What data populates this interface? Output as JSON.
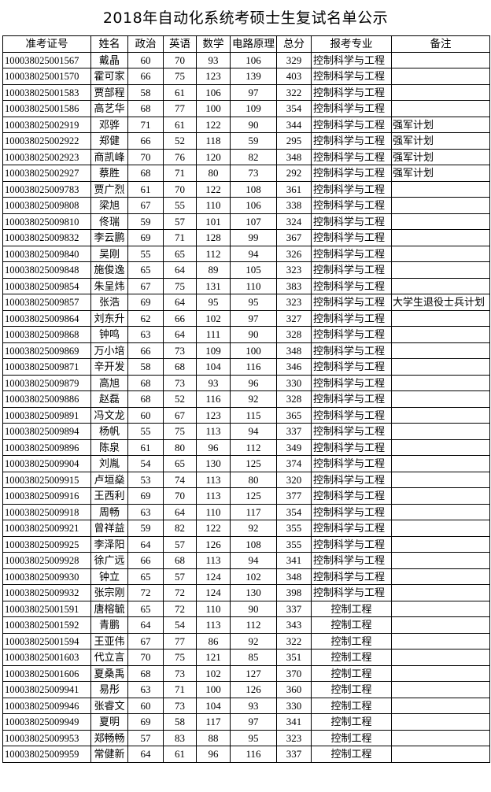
{
  "title": "2018年自动化系统考硕士生复试名单公示",
  "table": {
    "headers": [
      "准考证号",
      "姓名",
      "政治",
      "英语",
      "数学",
      "电路原理",
      "总分",
      "报考专业",
      "备注"
    ],
    "rows": [
      [
        "100038025001567",
        "戴晶",
        "60",
        "70",
        "93",
        "106",
        "329",
        "控制科学与工程",
        ""
      ],
      [
        "100038025001570",
        "霍可家",
        "66",
        "75",
        "123",
        "139",
        "403",
        "控制科学与工程",
        ""
      ],
      [
        "100038025001583",
        "贾部程",
        "58",
        "61",
        "106",
        "97",
        "322",
        "控制科学与工程",
        ""
      ],
      [
        "100038025001586",
        "高艺华",
        "68",
        "77",
        "100",
        "109",
        "354",
        "控制科学与工程",
        ""
      ],
      [
        "100038025002919",
        "邓骅",
        "71",
        "61",
        "122",
        "90",
        "344",
        "控制科学与工程",
        "强军计划"
      ],
      [
        "100038025002922",
        "郑健",
        "66",
        "52",
        "118",
        "59",
        "295",
        "控制科学与工程",
        "强军计划"
      ],
      [
        "100038025002923",
        "商凯峰",
        "70",
        "76",
        "120",
        "82",
        "348",
        "控制科学与工程",
        "强军计划"
      ],
      [
        "100038025002927",
        "蔡胜",
        "68",
        "71",
        "80",
        "73",
        "292",
        "控制科学与工程",
        "强军计划"
      ],
      [
        "100038025009783",
        "贾广烈",
        "61",
        "70",
        "122",
        "108",
        "361",
        "控制科学与工程",
        ""
      ],
      [
        "100038025009808",
        "梁旭",
        "67",
        "55",
        "110",
        "106",
        "338",
        "控制科学与工程",
        ""
      ],
      [
        "100038025009810",
        "佟瑞",
        "59",
        "57",
        "101",
        "107",
        "324",
        "控制科学与工程",
        ""
      ],
      [
        "100038025009832",
        "李云鹏",
        "69",
        "71",
        "128",
        "99",
        "367",
        "控制科学与工程",
        ""
      ],
      [
        "100038025009840",
        "吴刚",
        "55",
        "65",
        "112",
        "94",
        "326",
        "控制科学与工程",
        ""
      ],
      [
        "100038025009848",
        "施俊逸",
        "65",
        "64",
        "89",
        "105",
        "323",
        "控制科学与工程",
        ""
      ],
      [
        "100038025009854",
        "朱呈炜",
        "67",
        "75",
        "131",
        "110",
        "383",
        "控制科学与工程",
        ""
      ],
      [
        "100038025009857",
        "张浩",
        "69",
        "64",
        "95",
        "95",
        "323",
        "控制科学与工程",
        "大学生退役士兵计划"
      ],
      [
        "100038025009864",
        "刘东升",
        "62",
        "66",
        "102",
        "97",
        "327",
        "控制科学与工程",
        ""
      ],
      [
        "100038025009868",
        "钟鸣",
        "63",
        "64",
        "111",
        "90",
        "328",
        "控制科学与工程",
        ""
      ],
      [
        "100038025009869",
        "万小培",
        "66",
        "73",
        "109",
        "100",
        "348",
        "控制科学与工程",
        ""
      ],
      [
        "100038025009871",
        "辛开发",
        "58",
        "68",
        "104",
        "116",
        "346",
        "控制科学与工程",
        ""
      ],
      [
        "100038025009879",
        "高旭",
        "68",
        "73",
        "93",
        "96",
        "330",
        "控制科学与工程",
        ""
      ],
      [
        "100038025009886",
        "赵磊",
        "68",
        "52",
        "116",
        "92",
        "328",
        "控制科学与工程",
        ""
      ],
      [
        "100038025009891",
        "冯文龙",
        "60",
        "67",
        "123",
        "115",
        "365",
        "控制科学与工程",
        ""
      ],
      [
        "100038025009894",
        "杨帆",
        "55",
        "75",
        "113",
        "94",
        "337",
        "控制科学与工程",
        ""
      ],
      [
        "100038025009896",
        "陈泉",
        "61",
        "80",
        "96",
        "112",
        "349",
        "控制科学与工程",
        ""
      ],
      [
        "100038025009904",
        "刘胤",
        "54",
        "65",
        "130",
        "125",
        "374",
        "控制科学与工程",
        ""
      ],
      [
        "100038025009915",
        "卢垣燊",
        "53",
        "74",
        "113",
        "80",
        "320",
        "控制科学与工程",
        ""
      ],
      [
        "100038025009916",
        "王西利",
        "69",
        "70",
        "113",
        "125",
        "377",
        "控制科学与工程",
        ""
      ],
      [
        "100038025009918",
        "周畅",
        "63",
        "64",
        "110",
        "117",
        "354",
        "控制科学与工程",
        ""
      ],
      [
        "100038025009921",
        "曾祥益",
        "59",
        "82",
        "122",
        "92",
        "355",
        "控制科学与工程",
        ""
      ],
      [
        "100038025009925",
        "李泽阳",
        "64",
        "57",
        "126",
        "108",
        "355",
        "控制科学与工程",
        ""
      ],
      [
        "100038025009928",
        "徐广远",
        "66",
        "68",
        "113",
        "94",
        "341",
        "控制科学与工程",
        ""
      ],
      [
        "100038025009930",
        "钟立",
        "65",
        "57",
        "124",
        "102",
        "348",
        "控制科学与工程",
        ""
      ],
      [
        "100038025009932",
        "张宗刚",
        "72",
        "72",
        "124",
        "130",
        "398",
        "控制科学与工程",
        ""
      ],
      [
        "100038025001591",
        "唐榕毓",
        "65",
        "72",
        "110",
        "90",
        "337",
        "控制工程",
        ""
      ],
      [
        "100038025001592",
        "青鹏",
        "64",
        "54",
        "113",
        "112",
        "343",
        "控制工程",
        ""
      ],
      [
        "100038025001594",
        "王亚伟",
        "67",
        "77",
        "86",
        "92",
        "322",
        "控制工程",
        ""
      ],
      [
        "100038025001603",
        "代立言",
        "70",
        "75",
        "121",
        "85",
        "351",
        "控制工程",
        ""
      ],
      [
        "100038025001606",
        "夏桑禹",
        "68",
        "73",
        "102",
        "127",
        "370",
        "控制工程",
        ""
      ],
      [
        "100038025009941",
        "易彤",
        "63",
        "71",
        "100",
        "126",
        "360",
        "控制工程",
        ""
      ],
      [
        "100038025009946",
        "张睿文",
        "60",
        "73",
        "104",
        "93",
        "330",
        "控制工程",
        ""
      ],
      [
        "100038025009949",
        "夏明",
        "69",
        "58",
        "117",
        "97",
        "341",
        "控制工程",
        ""
      ],
      [
        "100038025009953",
        "郑畅畅",
        "57",
        "83",
        "88",
        "95",
        "323",
        "控制工程",
        ""
      ],
      [
        "100038025009959",
        "常健新",
        "64",
        "61",
        "96",
        "116",
        "337",
        "控制工程",
        ""
      ]
    ]
  }
}
